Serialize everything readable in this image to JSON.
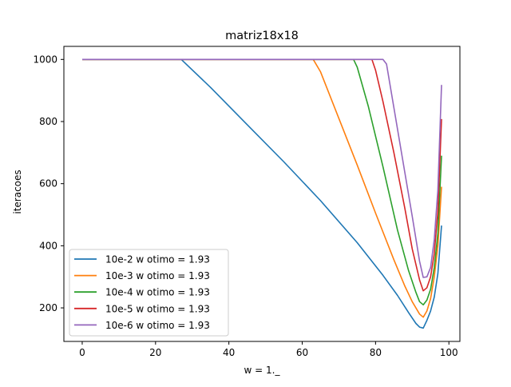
{
  "chart_data": {
    "type": "line",
    "title": "matriz18x18",
    "xlabel": "w = 1._",
    "ylabel": "iteracoes",
    "xlim": [
      -5,
      103
    ],
    "ylim": [
      92,
      1042
    ],
    "xticks": [
      "0",
      "20",
      "40",
      "60",
      "80",
      "100"
    ],
    "xtick_values": [
      0,
      20,
      40,
      60,
      80,
      100
    ],
    "yticks": [
      "200",
      "400",
      "600",
      "800",
      "1000"
    ],
    "ytick_values": [
      200,
      400,
      600,
      800,
      1000
    ],
    "grid": false,
    "legend_position": "lower-left",
    "series": [
      {
        "name": "10e-2 w otimo = 1.93",
        "color": "#1f77b4",
        "x": [
          0,
          27,
          35,
          45,
          55,
          65,
          75,
          82,
          86,
          89,
          91,
          92,
          93,
          94,
          95,
          96,
          97,
          98
        ],
        "y": [
          1000,
          1000,
          910,
          790,
          670,
          545,
          410,
          305,
          240,
          185,
          150,
          138,
          135,
          160,
          190,
          235,
          310,
          465
        ]
      },
      {
        "name": "10e-3 w otimo = 1.93",
        "color": "#ff7f0e",
        "x": [
          0,
          63,
          65,
          70,
          75,
          80,
          85,
          88,
          90,
          92,
          93,
          94,
          95,
          96,
          97,
          98
        ],
        "y": [
          1000,
          1000,
          960,
          810,
          660,
          505,
          355,
          270,
          220,
          180,
          170,
          190,
          230,
          300,
          400,
          590
        ]
      },
      {
        "name": "10e-4 w otimo = 1.93",
        "color": "#2ca02c",
        "x": [
          0,
          74,
          75,
          78,
          82,
          86,
          89,
          91,
          92,
          93,
          94,
          95,
          96,
          97,
          98
        ],
        "y": [
          1000,
          1000,
          975,
          850,
          655,
          450,
          320,
          250,
          220,
          210,
          225,
          260,
          330,
          440,
          690
        ]
      },
      {
        "name": "10e-5 w otimo = 1.93",
        "color": "#d62728",
        "x": [
          0,
          79,
          80,
          82,
          85,
          88,
          90,
          92,
          93,
          94,
          95,
          96,
          97,
          98
        ],
        "y": [
          1000,
          1000,
          965,
          865,
          700,
          520,
          390,
          290,
          255,
          265,
          300,
          375,
          510,
          808
        ]
      },
      {
        "name": "10e-6 w otimo = 1.93",
        "color": "#9467bd",
        "x": [
          0,
          82,
          83,
          85,
          88,
          90,
          92,
          93,
          94,
          95,
          96,
          97,
          98
        ],
        "y": [
          1000,
          1000,
          985,
          845,
          635,
          495,
          350,
          298,
          300,
          330,
          420,
          580,
          918
        ]
      }
    ]
  }
}
